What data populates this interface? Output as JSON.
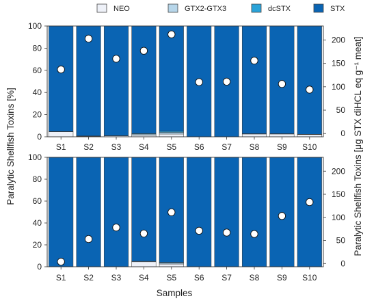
{
  "chart_data": {
    "type": "bar",
    "stacked": true,
    "legend": {
      "placement": "top-center",
      "entries": [
        "NEO",
        "GTX2-GTX3",
        "dcSTX",
        "STX"
      ]
    },
    "colors": {
      "NEO": "#eef1f8",
      "GTX2-GTX3": "#b7d6ea",
      "dcSTX": "#2aa3d9",
      "STX": "#0a64b3",
      "markers": "#ffffff"
    },
    "xlabel": "Samples",
    "ylabel_left": "Paralytic Shellfish Toxins [%]",
    "ylabel_right": "Paralytic Shellfish Toxins [μg STX diHCL eq g⁻¹ meat]",
    "ylim_left": [
      0,
      100
    ],
    "ylim_right": [
      -7,
      230
    ],
    "left_ticks": [
      "0",
      "20",
      "40",
      "60",
      "80",
      "100"
    ],
    "right_ticks": [
      "0",
      "50",
      "100",
      "150",
      "200"
    ],
    "panels": [
      {
        "categories": [
          "S1",
          "S2",
          "S3",
          "S4",
          "S5",
          "S6",
          "S7",
          "S8",
          "S9",
          "S10"
        ],
        "series": [
          {
            "name": "NEO",
            "values": [
              4.5,
              0.5,
              0.8,
              1.5,
              2.5,
              0,
              0,
              2.5,
              2.5,
              2.0
            ]
          },
          {
            "name": "GTX2-GTX3",
            "values": [
              0.3,
              0.3,
              0.2,
              1.0,
              1.5,
              0,
              0,
              0.3,
              0.3,
              0.3
            ]
          },
          {
            "name": "dcSTX",
            "values": [
              0,
              0,
              0,
              0.5,
              1.0,
              0,
              0,
              0,
              0,
              0
            ]
          },
          {
            "name": "STX",
            "values": [
              95.2,
              99.2,
              99.0,
              97.0,
              95.0,
              100,
              100,
              97.2,
              97.2,
              97.7
            ]
          }
        ],
        "total_psp": [
          137,
          203,
          160,
          177,
          212,
          110,
          111,
          156,
          106,
          94
        ]
      },
      {
        "categories": [
          "S1",
          "S2",
          "S3",
          "S4",
          "S5",
          "S6",
          "S7",
          "S8",
          "S9",
          "S10"
        ],
        "series": [
          {
            "name": "NEO",
            "values": [
              0,
              0,
              0,
              4.5,
              2.5,
              0,
              0,
              0,
              0,
              0
            ]
          },
          {
            "name": "GTX2-GTX3",
            "values": [
              0,
              0,
              0,
              0.5,
              1.0,
              0,
              0,
              0,
              0,
              0
            ]
          },
          {
            "name": "dcSTX",
            "values": [
              0,
              0,
              0,
              0,
              0.5,
              0,
              0,
              0,
              0,
              0
            ]
          },
          {
            "name": "STX",
            "values": [
              100,
              100,
              100,
              95.0,
              96.0,
              100,
              100,
              100,
              100,
              100
            ]
          }
        ],
        "total_psp": [
          4,
          53,
          78,
          65,
          111,
          71,
          67,
          64,
          103,
          133
        ]
      }
    ]
  }
}
